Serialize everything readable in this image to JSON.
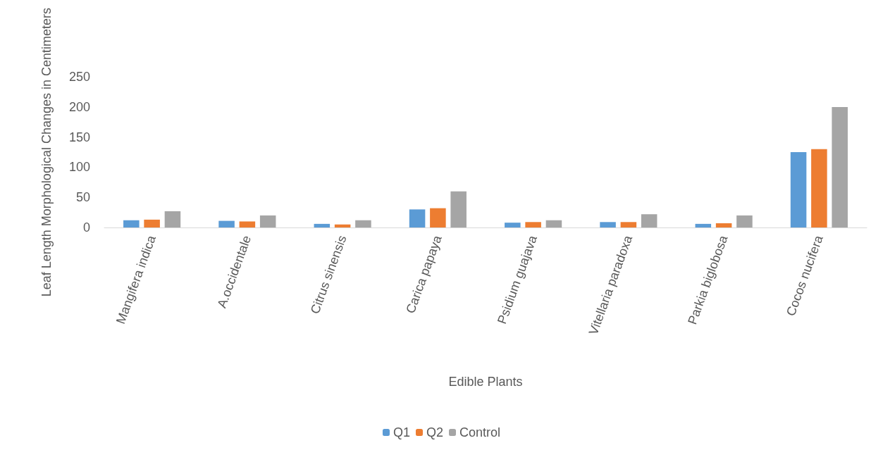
{
  "chart_data": {
    "type": "bar",
    "xlabel": "Edible Plants",
    "ylabel": "Leaf Length Morphological Changes in Centimeters",
    "categories": [
      "Mangifera indica",
      "A.occidentale",
      "Citrus sinensis",
      "Carica papaya",
      "Psidium guajava",
      "Vitellaria paradoxa",
      "Parkia biglobosa",
      "Cocos nucifera"
    ],
    "series": [
      {
        "name": "Q1",
        "color": "#5b9bd5",
        "values": [
          12,
          11,
          6,
          30,
          8,
          9,
          6,
          125
        ]
      },
      {
        "name": "Q2",
        "color": "#ed7d31",
        "values": [
          13,
          10,
          5,
          32,
          9,
          9,
          7,
          130
        ]
      },
      {
        "name": "Control",
        "color": "#a5a5a5",
        "values": [
          27,
          20,
          12,
          60,
          12,
          22,
          20,
          200
        ]
      }
    ],
    "ylim": [
      0,
      250
    ],
    "yticks": [
      0,
      50,
      100,
      150,
      200,
      250
    ],
    "grid": false,
    "legend": "bottom"
  }
}
